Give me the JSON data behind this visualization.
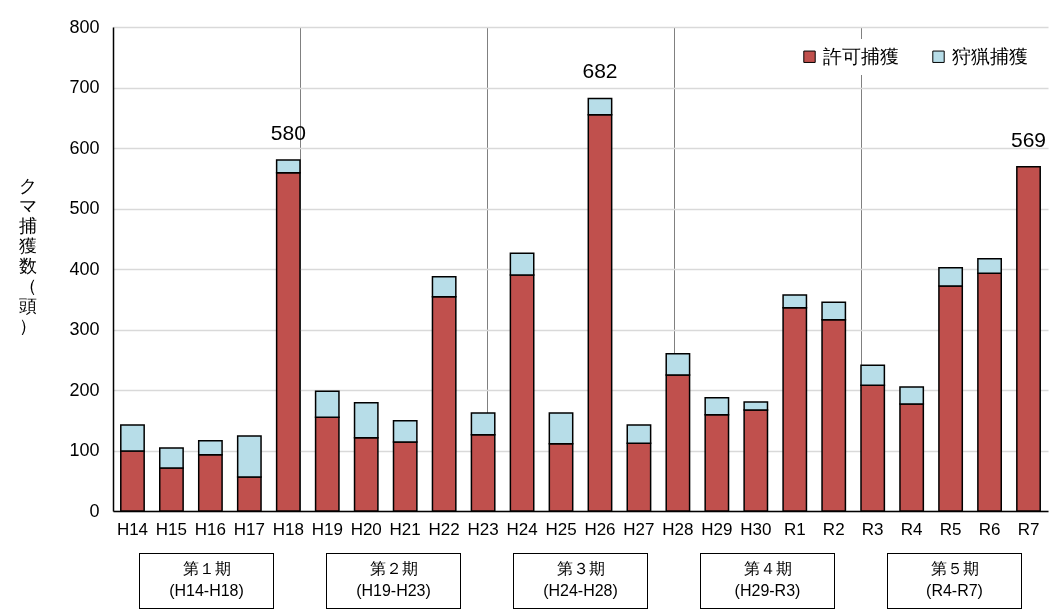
{
  "chart_data": {
    "type": "bar",
    "stacked": true,
    "ylabel": "クマ捕獲数（頭）",
    "categories": [
      "H14",
      "H15",
      "H16",
      "H17",
      "H18",
      "H19",
      "H20",
      "H21",
      "H22",
      "H23",
      "H24",
      "H25",
      "H26",
      "H27",
      "H28",
      "H29",
      "H30",
      "R1",
      "R2",
      "R3",
      "R4",
      "R5",
      "R6",
      "R7"
    ],
    "series": [
      {
        "name": "許可捕獲",
        "color": "#c0504d",
        "values": [
          99,
          71,
          93,
          56,
          559,
          155,
          121,
          114,
          354,
          126,
          390,
          111,
          655,
          112,
          225,
          159,
          167,
          336,
          316,
          208,
          177,
          372,
          393,
          569
        ]
      },
      {
        "name": "狩猟捕獲",
        "color": "#b7dde8",
        "values": [
          43,
          33,
          23,
          68,
          21,
          43,
          58,
          35,
          33,
          36,
          36,
          51,
          27,
          30,
          35,
          28,
          13,
          21,
          29,
          33,
          28,
          30,
          24,
          null
        ]
      }
    ],
    "totals": [
      null,
      null,
      null,
      null,
      "580",
      null,
      null,
      null,
      null,
      null,
      null,
      null,
      "682",
      null,
      null,
      null,
      null,
      null,
      null,
      null,
      null,
      null,
      null,
      "569"
    ],
    "ylim": [
      0,
      800
    ],
    "yticks": [
      0,
      100,
      200,
      300,
      400,
      500,
      600,
      700,
      800
    ],
    "grid": "y",
    "legend": "top right",
    "annotations": [
      "第１期\n(H14-H18)",
      "第２期\n(H19-H23)",
      "第３期\n(H24-H28)",
      "第４期\n(H29-R3)",
      "第５期\n(R4-R7)"
    ]
  }
}
